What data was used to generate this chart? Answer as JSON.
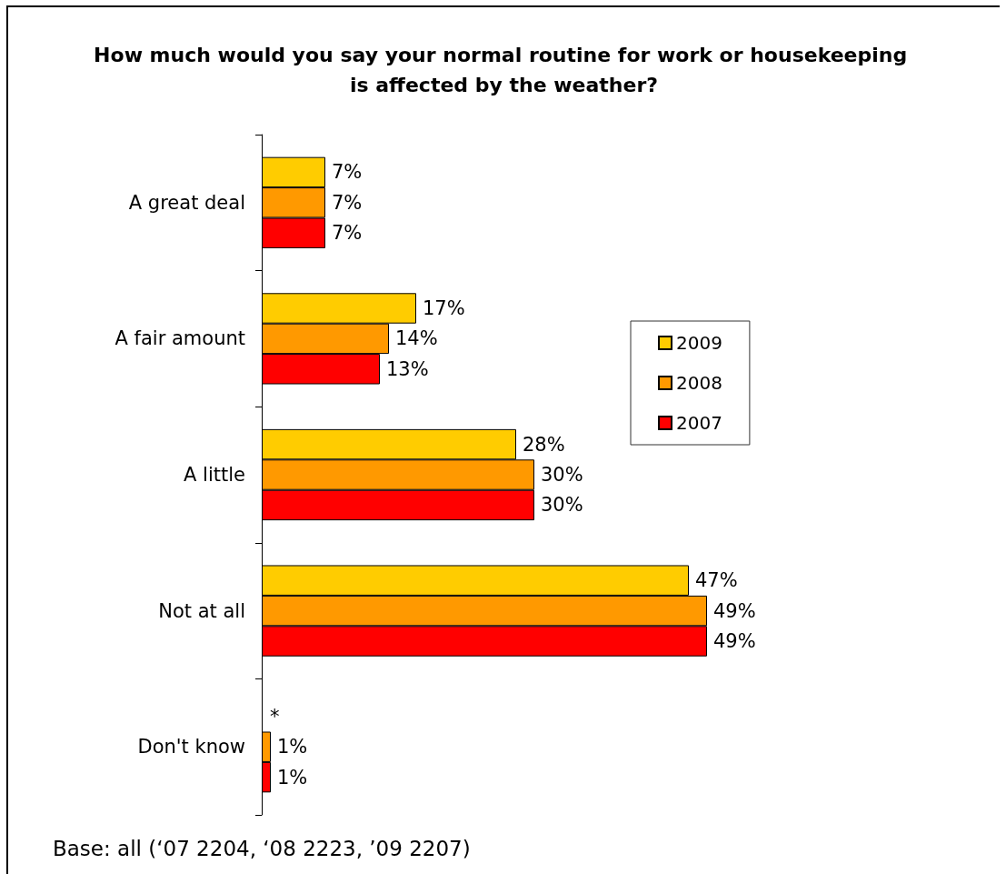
{
  "chart_data": {
    "type": "bar",
    "orientation": "horizontal",
    "title": "How much would you say your normal routine for work or housekeeping is affected by the weather?",
    "categories": [
      "A great deal",
      "A fair amount",
      "A little",
      "Not at all",
      "Don't know"
    ],
    "series": [
      {
        "name": "2009",
        "color": "#ffcc00",
        "values": [
          7,
          17,
          28,
          47,
          null
        ],
        "value_labels": [
          "7%",
          "17%",
          "28%",
          "47%",
          null
        ]
      },
      {
        "name": "2008",
        "color": "#ff9900",
        "values": [
          7,
          14,
          30,
          49,
          1
        ],
        "value_labels": [
          "7%",
          "14%",
          "30%",
          "49%",
          "1%"
        ]
      },
      {
        "name": "2007",
        "color": "#ff0000",
        "values": [
          7,
          13,
          30,
          49,
          1
        ],
        "value_labels": [
          "7%",
          "13%",
          "30%",
          "49%",
          "1%"
        ]
      }
    ],
    "legend": "right",
    "grid": false,
    "tick_labels": "y",
    "annotations": [
      {
        "text": "*",
        "x": 0,
        "y": "Don't know"
      },
      "Base: all (‘07 2204, ‘08 2223, ’09 2207)"
    ]
  }
}
